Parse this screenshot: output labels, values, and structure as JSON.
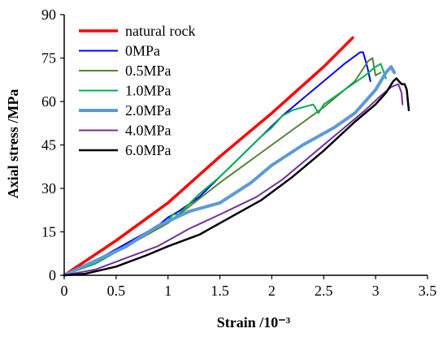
{
  "chart_data": {
    "type": "line",
    "xlabel": "Strain /10⁻³",
    "ylabel": "Axial stress /MPa",
    "xlim": [
      0,
      3.5
    ],
    "ylim": [
      0,
      90
    ],
    "xticks": [
      0,
      0.5,
      1,
      1.5,
      2,
      2.5,
      3,
      3.5
    ],
    "yticks": [
      0,
      15,
      30,
      45,
      60,
      75,
      90
    ],
    "xtick_labels": [
      "0",
      "0.5",
      "1",
      "1.5",
      "2",
      "2.5",
      "3",
      "3.5"
    ],
    "ytick_labels": [
      "0",
      "15",
      "30",
      "45",
      "60",
      "75",
      "90"
    ],
    "grid": false,
    "legend_position": "top-left",
    "series": [
      {
        "name": "natural rock",
        "color": "#ff0000",
        "width": 3.5,
        "x": [
          0,
          0.5,
          1.0,
          1.5,
          2.0,
          2.5,
          2.78
        ],
        "y": [
          0,
          12,
          25,
          41,
          56,
          72,
          82
        ]
      },
      {
        "name": "0MPa",
        "color": "#0000ff",
        "width": 2,
        "x": [
          0,
          0.3,
          0.6,
          0.9,
          1.0,
          1.1,
          1.3,
          1.5,
          1.7,
          1.9,
          2.1,
          2.3,
          2.5,
          2.7,
          2.85,
          2.88,
          2.92,
          2.95
        ],
        "y": [
          0,
          5,
          11,
          17,
          20,
          22,
          27,
          34,
          41,
          48,
          55,
          61,
          67,
          73,
          77,
          77,
          72,
          67
        ]
      },
      {
        "name": "0.5MPa",
        "color": "#548235",
        "width": 2,
        "x": [
          0,
          0.5,
          1.0,
          1.5,
          2.0,
          2.5,
          2.8,
          2.93,
          2.97,
          3.0,
          3.05
        ],
        "y": [
          0,
          8,
          18,
          32,
          45,
          58,
          67,
          74,
          75,
          69,
          70
        ]
      },
      {
        "name": "1.0MPa",
        "color": "#00b050",
        "width": 2,
        "x": [
          0,
          0.3,
          0.6,
          0.9,
          1.0,
          1.05,
          1.1,
          1.3,
          1.5,
          1.7,
          1.9,
          2.0,
          2.1,
          2.2,
          2.3,
          2.4,
          2.45,
          2.5,
          2.7,
          2.9,
          3.0,
          3.05,
          3.1
        ],
        "y": [
          0,
          4,
          10,
          17,
          19,
          21,
          21,
          28,
          34,
          41,
          48,
          51,
          55,
          57,
          58,
          59,
          56,
          59,
          64,
          69,
          72,
          73,
          68
        ]
      },
      {
        "name": "2.0MPa",
        "color": "#5b9bd5",
        "width": 4,
        "x": [
          0,
          0.3,
          0.6,
          0.9,
          1.2,
          1.5,
          1.8,
          2.0,
          2.3,
          2.6,
          2.8,
          3.0,
          3.1,
          3.15,
          3.18
        ],
        "y": [
          0,
          5,
          10,
          17,
          22,
          25,
          32,
          38,
          45,
          51,
          56,
          64,
          70,
          72,
          70
        ]
      },
      {
        "name": "4.0MPa",
        "color": "#7030a0",
        "width": 2,
        "x": [
          0,
          0.3,
          0.6,
          0.9,
          1.0,
          1.2,
          1.5,
          1.85,
          2.1,
          2.4,
          2.7,
          2.9,
          3.05,
          3.15,
          3.22,
          3.25,
          3.26
        ],
        "y": [
          0,
          2,
          6,
          10,
          12,
          16,
          21,
          27,
          33,
          42,
          51,
          57,
          62,
          65,
          66,
          63,
          59
        ]
      },
      {
        "name": "6.0MPa",
        "color": "#000000",
        "width": 2.5,
        "x": [
          0,
          0.2,
          0.5,
          0.8,
          1.0,
          1.3,
          1.6,
          1.9,
          2.2,
          2.5,
          2.8,
          3.0,
          3.1,
          3.17,
          3.2,
          3.25,
          3.28,
          3.3,
          3.32
        ],
        "y": [
          0,
          0.5,
          3,
          7,
          10,
          14,
          20,
          26,
          34,
          43,
          53,
          59,
          63,
          67,
          68,
          66,
          66,
          64,
          57
        ]
      }
    ]
  }
}
